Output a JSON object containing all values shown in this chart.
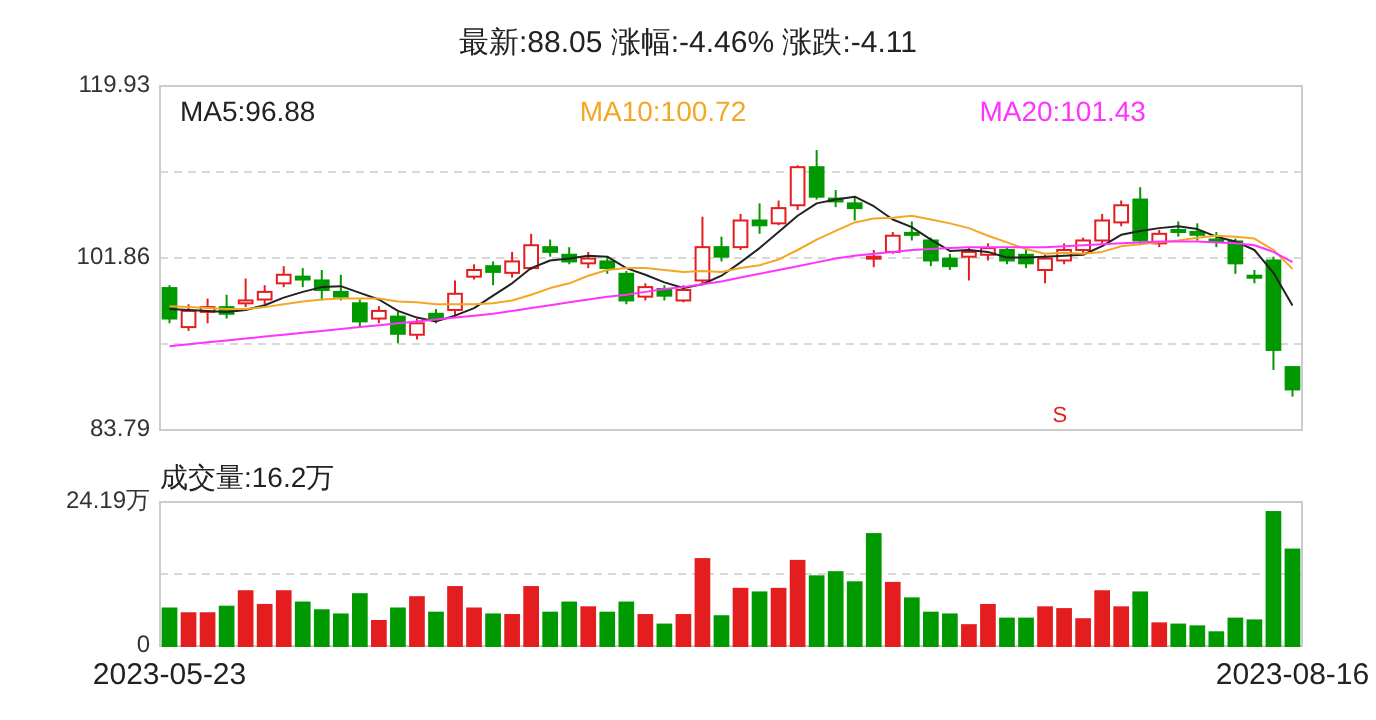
{
  "chart_data": [
    {
      "type": "candlestick",
      "title": "最新:88.05   涨幅:-4.46%   涨跌:-4.11",
      "categories": [
        null,
        null,
        null,
        null,
        null,
        null,
        null,
        null,
        null,
        null,
        null,
        null,
        null,
        null,
        null,
        null,
        null,
        null,
        null,
        null,
        null,
        null,
        null,
        null,
        null,
        null,
        null,
        null,
        null,
        null,
        null,
        null,
        null,
        null,
        null,
        null,
        null,
        null,
        null,
        null,
        null,
        null,
        null,
        null,
        null,
        null,
        null,
        null,
        null,
        null,
        null,
        null,
        null,
        null,
        null,
        null,
        null,
        null,
        null,
        null
      ],
      "ohlc": [
        [
          98.7,
          99.0,
          95.0,
          95.5
        ],
        [
          94.6,
          97.0,
          94.2,
          96.3
        ],
        [
          96.2,
          97.6,
          95.0,
          96.7
        ],
        [
          96.7,
          98.0,
          95.5,
          96.0
        ],
        [
          97.1,
          99.7,
          96.7,
          97.4
        ],
        [
          97.5,
          99.0,
          97.0,
          98.3
        ],
        [
          99.2,
          101.0,
          98.8,
          100.1
        ],
        [
          99.9,
          100.8,
          98.8,
          99.6
        ],
        [
          99.5,
          100.6,
          97.4,
          98.5
        ],
        [
          98.3,
          100.1,
          97.4,
          97.8
        ],
        [
          97.1,
          97.5,
          94.5,
          95.2
        ],
        [
          95.5,
          96.8,
          95.0,
          96.3
        ],
        [
          95.7,
          96.2,
          92.9,
          93.9
        ],
        [
          93.8,
          95.5,
          93.3,
          95.0
        ],
        [
          96.0,
          96.5,
          95.0,
          95.5
        ],
        [
          96.4,
          99.5,
          95.7,
          98.1
        ],
        [
          99.9,
          101.2,
          99.6,
          100.6
        ],
        [
          101.0,
          101.5,
          99.0,
          100.4
        ],
        [
          100.3,
          102.5,
          99.8,
          101.5
        ],
        [
          100.8,
          104.4,
          100.6,
          103.2
        ],
        [
          103.0,
          103.8,
          102.0,
          102.5
        ],
        [
          102.2,
          103.0,
          101.2,
          101.5
        ],
        [
          101.3,
          102.5,
          100.8,
          101.8
        ],
        [
          101.5,
          102.0,
          100.2,
          100.8
        ],
        [
          100.2,
          100.5,
          97.0,
          97.4
        ],
        [
          97.8,
          99.2,
          97.4,
          98.8
        ],
        [
          98.6,
          99.0,
          97.4,
          97.9
        ],
        [
          97.4,
          99.0,
          97.2,
          98.5
        ],
        [
          99.5,
          106.2,
          99.0,
          103.0
        ],
        [
          103.0,
          104.1,
          101.5,
          102.0
        ],
        [
          103.0,
          106.5,
          102.7,
          105.8
        ],
        [
          105.8,
          107.6,
          104.4,
          105.3
        ],
        [
          105.5,
          107.9,
          105.3,
          107.1
        ],
        [
          107.4,
          111.6,
          106.9,
          111.4
        ],
        [
          111.4,
          113.2,
          108.0,
          108.3
        ],
        [
          108.1,
          109.0,
          107.2,
          107.8
        ],
        [
          107.6,
          108.3,
          105.8,
          107.1
        ],
        [
          101.9,
          102.7,
          100.9,
          102.0
        ],
        [
          102.5,
          104.6,
          102.3,
          104.2
        ],
        [
          104.5,
          105.7,
          103.7,
          104.3
        ],
        [
          103.7,
          104.0,
          101.0,
          101.6
        ],
        [
          101.8,
          102.3,
          100.6,
          101.0
        ],
        [
          102.0,
          103.0,
          99.5,
          102.5
        ],
        [
          102.2,
          103.4,
          101.6,
          102.9
        ],
        [
          102.7,
          103.0,
          101.2,
          101.6
        ],
        [
          102.2,
          102.7,
          100.8,
          101.3
        ],
        [
          100.6,
          102.2,
          99.2,
          101.8
        ],
        [
          101.6,
          103.4,
          101.2,
          102.7
        ],
        [
          102.7,
          104.0,
          102.4,
          103.7
        ],
        [
          103.7,
          106.5,
          103.4,
          105.8
        ],
        [
          105.6,
          107.9,
          105.2,
          107.4
        ],
        [
          108.0,
          109.3,
          103.2,
          103.7
        ],
        [
          103.4,
          104.8,
          103.0,
          104.4
        ],
        [
          104.8,
          105.7,
          104.1,
          104.6
        ],
        [
          104.6,
          105.5,
          103.7,
          104.3
        ],
        [
          103.8,
          104.6,
          103.0,
          103.6
        ],
        [
          103.6,
          103.9,
          100.2,
          101.3
        ],
        [
          100.0,
          100.6,
          99.2,
          99.9
        ],
        [
          101.6,
          102.0,
          90.1,
          92.2
        ],
        [
          90.4,
          90.5,
          87.3,
          88.05
        ]
      ],
      "colors": [
        "#009900",
        "#e41e1e",
        "#e41e1e",
        "#009900",
        "#e41e1e",
        "#e41e1e",
        "#e41e1e",
        "#009900",
        "#009900",
        "#009900",
        "#009900",
        "#e41e1e",
        "#009900",
        "#e41e1e",
        "#009900",
        "#e41e1e",
        "#e41e1e",
        "#009900",
        "#e41e1e",
        "#e41e1e",
        "#009900",
        "#009900",
        "#e41e1e",
        "#009900",
        "#009900",
        "#e41e1e",
        "#009900",
        "#e41e1e",
        "#e41e1e",
        "#009900",
        "#e41e1e",
        "#009900",
        "#e41e1e",
        "#e41e1e",
        "#009900",
        "#009900",
        "#009900",
        "#e41e1e",
        "#e41e1e",
        "#009900",
        "#009900",
        "#009900",
        "#e41e1e",
        "#e41e1e",
        "#009900",
        "#009900",
        "#e41e1e",
        "#e41e1e",
        "#e41e1e",
        "#e41e1e",
        "#e41e1e",
        "#009900",
        "#e41e1e",
        "#009900",
        "#009900",
        "#009900",
        "#009900",
        "#009900",
        "#009900",
        "#009900"
      ],
      "series": [
        {
          "name": "MA5:96.88",
          "type": "line",
          "color": "#222222",
          "values": [
            96.5,
            96.4,
            96.3,
            96.2,
            96.4,
            96.9,
            97.7,
            98.3,
            98.8,
            98.9,
            98.2,
            97.5,
            96.3,
            95.6,
            95.2,
            95.8,
            96.6,
            97.9,
            99.2,
            100.8,
            101.6,
            101.8,
            102.1,
            102.0,
            100.8,
            100.1,
            99.3,
            98.7,
            99.1,
            100.0,
            101.4,
            102.9,
            104.6,
            106.3,
            107.6,
            108.0,
            108.3,
            107.3,
            105.9,
            105.1,
            103.8,
            102.6,
            102.7,
            102.5,
            101.9,
            101.9,
            102.0,
            102.1,
            102.2,
            103.1,
            104.3,
            104.7,
            105.0,
            105.2,
            104.9,
            104.1,
            103.6,
            102.7,
            100.3,
            96.88
          ]
        },
        {
          "name": "MA10:100.72",
          "type": "line",
          "color": "#f5a623",
          "values": [
            96.8,
            96.7,
            96.6,
            96.5,
            96.5,
            96.7,
            97.0,
            97.3,
            97.5,
            97.6,
            97.6,
            97.6,
            97.3,
            97.2,
            97.0,
            97.0,
            97.0,
            97.1,
            97.4,
            98.0,
            98.7,
            99.2,
            100.0,
            100.6,
            100.8,
            100.8,
            100.6,
            100.4,
            100.5,
            100.4,
            100.8,
            101.1,
            101.7,
            102.7,
            103.8,
            104.7,
            105.6,
            106.0,
            106.1,
            106.3,
            105.9,
            105.5,
            105.0,
            104.2,
            103.5,
            102.8,
            102.3,
            102.4,
            102.3,
            102.5,
            103.1,
            103.3,
            103.5,
            103.7,
            104.0,
            104.2,
            104.1,
            103.9,
            102.7,
            100.72
          ]
        },
        {
          "name": "MA20:101.43",
          "type": "line",
          "color": "#ff33ff",
          "values": [
            92.6,
            92.8,
            93.0,
            93.2,
            93.4,
            93.6,
            93.8,
            94.0,
            94.2,
            94.4,
            94.6,
            94.8,
            95.0,
            95.2,
            95.4,
            95.6,
            95.8,
            96.0,
            96.3,
            96.6,
            96.9,
            97.2,
            97.5,
            97.8,
            98.0,
            98.3,
            98.6,
            98.8,
            99.1,
            99.4,
            99.8,
            100.2,
            100.6,
            101.0,
            101.4,
            101.8,
            102.1,
            102.3,
            102.5,
            102.7,
            102.8,
            102.9,
            103.0,
            103.0,
            103.0,
            103.0,
            103.0,
            103.1,
            103.2,
            103.3,
            103.4,
            103.5,
            103.6,
            103.6,
            103.6,
            103.5,
            103.4,
            103.2,
            102.5,
            101.43
          ]
        }
      ],
      "ylim": [
        83.79,
        119.93
      ],
      "yticks": [
        119.93,
        {
          "value": 110.895,
          "label": null
        },
        101.86,
        {
          "value": 92.825,
          "label": null
        },
        83.79
      ],
      "grid": "y",
      "legend": "top",
      "tick_labels": "y",
      "annotations": [
        "S"
      ]
    },
    {
      "type": "bar",
      "title": "成交量:16.2万",
      "categories": [
        "2023-05-23",
        null,
        null,
        null,
        null,
        null,
        null,
        null,
        null,
        null,
        null,
        null,
        null,
        null,
        null,
        null,
        null,
        null,
        null,
        null,
        null,
        null,
        null,
        null,
        null,
        null,
        null,
        null,
        null,
        null,
        null,
        null,
        null,
        null,
        null,
        null,
        null,
        null,
        null,
        null,
        null,
        null,
        null,
        null,
        null,
        null,
        null,
        null,
        null,
        null,
        null,
        null,
        null,
        null,
        null,
        null,
        null,
        null,
        null,
        "2023-08-16"
      ],
      "values": [
        6.3,
        5.5,
        5.5,
        6.6,
        9.2,
        6.9,
        9.2,
        7.3,
        6.0,
        5.3,
        8.7,
        4.2,
        6.3,
        8.2,
        5.6,
        9.9,
        6.3,
        5.3,
        5.2,
        9.9,
        5.6,
        7.3,
        6.5,
        5.6,
        7.3,
        5.2,
        3.6,
        5.2,
        14.6,
        5.0,
        9.6,
        9.0,
        9.6,
        14.3,
        11.7,
        12.4,
        10.7,
        18.8,
        10.6,
        8.0,
        5.6,
        5.3,
        3.5,
        6.9,
        4.6,
        4.6,
        6.5,
        6.2,
        4.5,
        9.2,
        6.5,
        9.0,
        3.8,
        3.6,
        3.3,
        2.3,
        4.6,
        4.3,
        22.5,
        16.2
      ],
      "colors": [
        "#009900",
        "#e41e1e",
        "#e41e1e",
        "#009900",
        "#e41e1e",
        "#e41e1e",
        "#e41e1e",
        "#009900",
        "#009900",
        "#009900",
        "#009900",
        "#e41e1e",
        "#009900",
        "#e41e1e",
        "#009900",
        "#e41e1e",
        "#e41e1e",
        "#009900",
        "#e41e1e",
        "#e41e1e",
        "#009900",
        "#009900",
        "#e41e1e",
        "#009900",
        "#009900",
        "#e41e1e",
        "#009900",
        "#e41e1e",
        "#e41e1e",
        "#009900",
        "#e41e1e",
        "#009900",
        "#e41e1e",
        "#e41e1e",
        "#009900",
        "#009900",
        "#009900",
        "#009900",
        "#e41e1e",
        "#009900",
        "#009900",
        "#009900",
        "#e41e1e",
        "#e41e1e",
        "#009900",
        "#009900",
        "#e41e1e",
        "#e41e1e",
        "#e41e1e",
        "#e41e1e",
        "#e41e1e",
        "#009900",
        "#e41e1e",
        "#009900",
        "#009900",
        "#009900",
        "#009900",
        "#009900",
        "#009900",
        "#009900"
      ],
      "ylim": [
        0,
        24.19
      ],
      "yticks": [
        {
          "value": 24.19,
          "label": "24.19万"
        },
        {
          "value": 12.095,
          "label": null
        },
        0
      ],
      "grid": "y"
    }
  ]
}
